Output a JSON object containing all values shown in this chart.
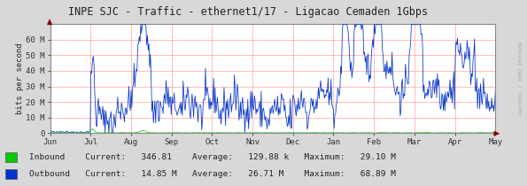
{
  "title": "INPE SJC - Traffic - ethernet1/17 - Ligacao Cemaden 1Gbps",
  "ylabel": "bits per second",
  "bg_color": "#d8d8d8",
  "plot_bg_color": "#ffffff",
  "grid_color": "#ff9999",
  "axis_color": "#888888",
  "title_color": "#222222",
  "inbound_color": "#00cc00",
  "outbound_color": "#0033cc",
  "arrow_color": "#cc0000",
  "yticks": [
    0,
    10000000,
    20000000,
    30000000,
    40000000,
    50000000,
    60000000
  ],
  "ytick_labels": [
    "0",
    "10 M",
    "20 M",
    "30 M",
    "40 M",
    "50 M",
    "60 M"
  ],
  "ylim": [
    0,
    70000000
  ],
  "xtick_labels": [
    "Jun",
    "Jul",
    "Aug",
    "Sep",
    "Oct",
    "Nov",
    "Dec",
    "Jan",
    "Feb",
    "Mar",
    "Apr",
    "May"
  ],
  "legend_items": [
    {
      "label": "Inbound",
      "color": "#00cc00",
      "current": "346.81",
      "avg": "129.88 k",
      "max": "29.10 M"
    },
    {
      "label": "Outbound",
      "color": "#0033cc",
      "current": "14.85 M",
      "avg": "26.71 M",
      "max": "68.89 M"
    }
  ],
  "watermark": "RRDTOOL / TOBI OETIKER",
  "n_points": 600,
  "random_seed": 42
}
